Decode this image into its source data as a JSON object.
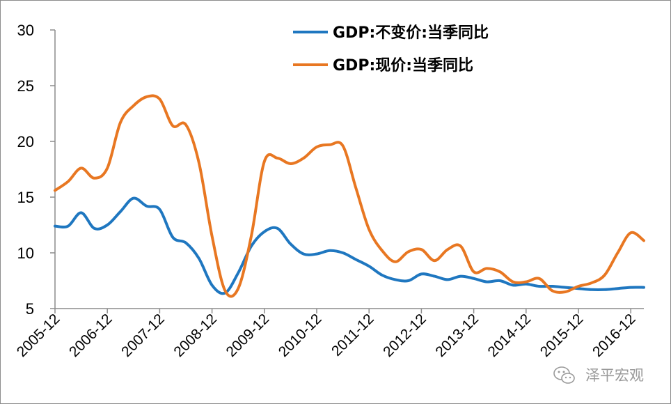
{
  "chart_data": {
    "type": "line",
    "title": "",
    "xlabel": "",
    "ylabel": "",
    "ylim": [
      5,
      30
    ],
    "yticks": [
      5,
      10,
      15,
      20,
      25,
      30
    ],
    "xlim": [
      0,
      45
    ],
    "xtick_labels": [
      "2005-12",
      "2006-12",
      "2007-12",
      "2008-12",
      "2009-12",
      "2010-12",
      "2011-12",
      "2012-12",
      "2013-12",
      "2014-12",
      "2015-12",
      "2016-12"
    ],
    "xtick_positions": [
      0,
      4,
      8,
      12,
      16,
      20,
      24,
      28,
      32,
      36,
      40,
      44
    ],
    "legend_position": "top-center",
    "grid": false,
    "series": [
      {
        "name": "GDP:不变价:当季同比",
        "color": "#1f77c0",
        "x": [
          0,
          1,
          2,
          3,
          4,
          5,
          6,
          7,
          8,
          9,
          10,
          11,
          12,
          13,
          14,
          15,
          16,
          17,
          18,
          19,
          20,
          21,
          22,
          23,
          24,
          25,
          26,
          27,
          28,
          29,
          30,
          31,
          32,
          33,
          34,
          35,
          36,
          37,
          38,
          39,
          40,
          41,
          42,
          43,
          44,
          45
        ],
        "y": [
          12.4,
          12.4,
          13.6,
          12.2,
          12.5,
          13.7,
          14.9,
          14.2,
          13.9,
          11.4,
          10.9,
          9.5,
          7.1,
          6.4,
          8.2,
          10.6,
          11.9,
          12.2,
          10.8,
          9.9,
          9.9,
          10.2,
          10.0,
          9.4,
          8.8,
          8.0,
          7.6,
          7.5,
          8.1,
          7.9,
          7.6,
          7.9,
          7.7,
          7.4,
          7.5,
          7.1,
          7.2,
          7.0,
          7.0,
          6.9,
          6.8,
          6.7,
          6.7,
          6.8,
          6.9,
          6.9
        ]
      },
      {
        "name": "GDP:现价:当季同比",
        "color": "#e87722",
        "x": [
          0,
          1,
          2,
          3,
          4,
          5,
          6,
          7,
          8,
          9,
          10,
          11,
          12,
          13,
          14,
          15,
          16,
          17,
          18,
          19,
          20,
          21,
          22,
          23,
          24,
          25,
          26,
          27,
          28,
          29,
          30,
          31,
          32,
          33,
          34,
          35,
          36,
          37,
          38,
          39,
          40,
          41,
          42,
          43,
          44,
          45
        ],
        "y": [
          15.6,
          16.4,
          17.6,
          16.7,
          17.6,
          21.7,
          23.2,
          24.0,
          23.8,
          21.4,
          21.5,
          18.1,
          11.5,
          6.6,
          6.8,
          11.5,
          18.2,
          18.5,
          18.0,
          18.5,
          19.5,
          19.7,
          19.6,
          15.8,
          12.1,
          10.2,
          9.2,
          10.1,
          10.3,
          9.3,
          10.3,
          10.6,
          8.3,
          8.6,
          8.3,
          7.4,
          7.4,
          7.7,
          6.6,
          6.5,
          7.0,
          7.3,
          8.0,
          10.0,
          11.8,
          11.1
        ]
      }
    ]
  },
  "watermark": {
    "text": "泽平宏观",
    "icon": "wechat-icon"
  }
}
